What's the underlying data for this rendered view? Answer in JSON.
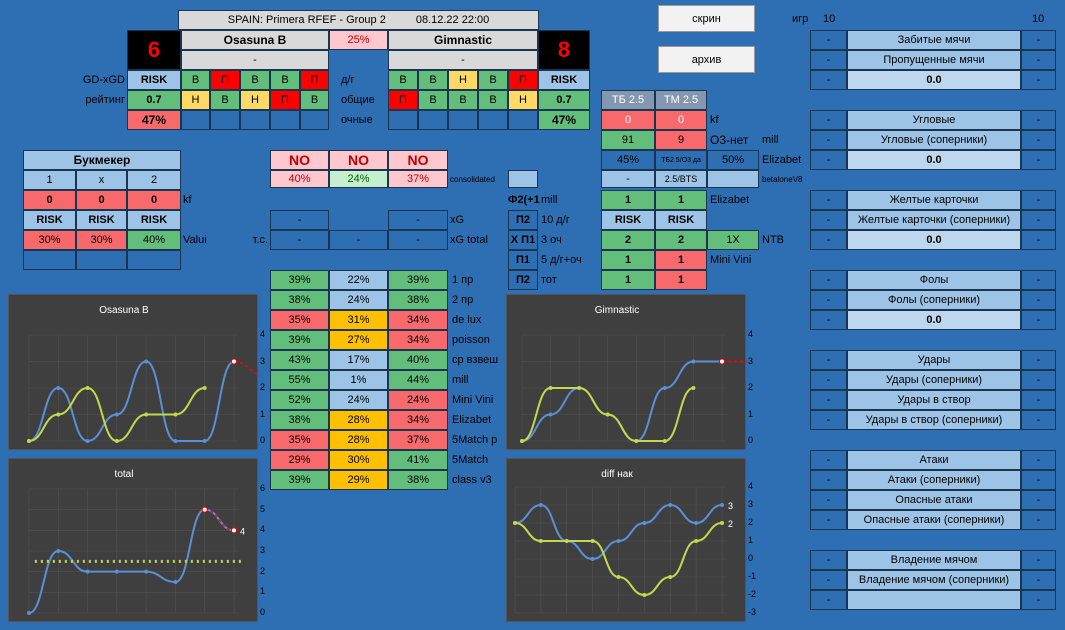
{
  "header": {
    "title": "SPAIN: Primera RFEF - Group 2",
    "date": "08.12.22 22:00",
    "home": "Osasuna B",
    "away": "Gimnastic",
    "dash": "-",
    "home_score": "6",
    "away_score": "8",
    "pct": "25%"
  },
  "labels": {
    "gdxgd": "GD-xGD",
    "rating": "рейтинг",
    "dg": "д/г",
    "overall": "общие",
    "direct": "очные",
    "bookmaker": "Букмекер",
    "one": "1",
    "x": "x",
    "two": "2",
    "kf": "kf",
    "valui": "Valui",
    "ts": "т.с.",
    "xg": "xG",
    "xg_total": "xG total",
    "consolidated": "consolidated",
    "f2": "Ф2(+1",
    "mill": "mill",
    "p2": "П2",
    "p2_10": "10 д/г",
    "xp1": "Х П1",
    "p3och": "3 оч",
    "p1": "П1",
    "p1_5": "5 д/г+оч",
    "p2b": "П2",
    "tot": "тот",
    "tb": "ТБ 2.5",
    "tm": "ТМ 2.5",
    "o3": "О3-нет",
    "mill2": "mill",
    "elizabet": "Elizabet",
    "betalone": "betaloneV8",
    "elizabet2": "Elizabet",
    "ntb": "NTB",
    "minivini": "Mini Vini",
    "games": "игр",
    "games_l": "10",
    "games_r": "10"
  },
  "home_form": {
    "risk": "RISK",
    "dg": [
      "В",
      "П",
      "В",
      "В",
      "П"
    ],
    "rating": "0.7",
    "ov": [
      "Н",
      "В",
      "Н",
      "П",
      "В"
    ],
    "direct": "47%"
  },
  "away_form": {
    "risk": "RISK",
    "dg": [
      "В",
      "В",
      "Н",
      "В",
      "П"
    ],
    "rating": "0.7",
    "ov": [
      "П",
      "В",
      "В",
      "В",
      "Н"
    ],
    "direct": "47%"
  },
  "bk": {
    "kf": [
      "0",
      "0",
      "0"
    ],
    "risk": [
      "RISK",
      "RISK",
      "RISK"
    ],
    "val": [
      "30%",
      "30%",
      "40%"
    ]
  },
  "no": {
    "lbl": [
      "NO",
      "NO",
      "NO"
    ],
    "pct": [
      "40%",
      "24%",
      "37%"
    ]
  },
  "xg": {
    "h": "-",
    "a": "-",
    "th": "-",
    "tm": "-",
    "ta": "-"
  },
  "mid": {
    "f2": [
      "1",
      "1"
    ],
    "p2": [
      "RISK",
      "RISK"
    ],
    "xp1": [
      "2",
      "2",
      "1X"
    ],
    "p1": [
      "1",
      "1"
    ],
    "p2b": [
      "1",
      "1"
    ],
    "tbtm": [
      "0",
      "0"
    ],
    "mill": [
      "91",
      "9"
    ],
    "eliz": [
      "45%",
      "ТБ2.5/О3 да",
      "50%"
    ],
    "bts": [
      "-",
      "2.5/BTS",
      ""
    ]
  },
  "preds": [
    [
      "39%",
      "22%",
      "39%",
      "1 пр"
    ],
    [
      "38%",
      "24%",
      "38%",
      "2 пр"
    ],
    [
      "35%",
      "31%",
      "34%",
      "de lux"
    ],
    [
      "39%",
      "27%",
      "34%",
      "poisson"
    ],
    [
      "43%",
      "17%",
      "40%",
      "ср взвеш"
    ],
    [
      "55%",
      "1%",
      "44%",
      "mill"
    ],
    [
      "52%",
      "24%",
      "24%",
      "Mini Vini"
    ],
    [
      "38%",
      "28%",
      "34%",
      "Elizabet"
    ],
    [
      "35%",
      "28%",
      "37%",
      "5Match р"
    ],
    [
      "29%",
      "30%",
      "41%",
      "5Match"
    ],
    [
      "39%",
      "29%",
      "38%",
      "class v3"
    ]
  ],
  "stats": [
    {
      "rows": [
        "Забитые мячи",
        "Пропущенные мячи"
      ],
      "val": "0.0"
    },
    {
      "rows": [
        "Угловые",
        "Угловые (соперники)"
      ],
      "val": "0.0"
    },
    {
      "rows": [
        "Желтые карточки",
        "Желтые карточки (соперники)"
      ],
      "val": "0.0"
    },
    {
      "rows": [
        "Фолы",
        "Фолы (соперники)"
      ],
      "val": "0.0"
    },
    {
      "rows": [
        "Удары",
        "Удары (соперники)",
        "Удары в створ",
        "Удары в створ (соперники)"
      ],
      "val": null
    },
    {
      "rows": [
        "Атаки",
        "Атаки (соперники)",
        "Опасные атаки",
        "Опасные атаки (соперники)"
      ],
      "val": null
    },
    {
      "rows": [
        "Владение мячом",
        "Владение мячом (соперники)",
        ""
      ],
      "val": null
    }
  ],
  "buttons": {
    "screen": "скрин",
    "archive": "архив"
  },
  "colors": {
    "bg": "#2e6fb4",
    "green": "#63be7b",
    "red": "#f8696b",
    "yellow": "#ffd966",
    "blue_line": "#5b8fd6",
    "lime_line": "#c2d94c"
  },
  "chart_data": [
    {
      "type": "line",
      "title": "Osasuna B",
      "ylim": [
        0,
        4
      ],
      "yticks": [
        "0",
        "1",
        "2",
        "3",
        "4"
      ],
      "series": [
        {
          "values": [
            0,
            2,
            0,
            1,
            3,
            0,
            0,
            3
          ]
        },
        {
          "values": [
            0,
            1,
            2,
            0,
            1,
            1,
            2
          ]
        },
        {
          "values": [
            3,
            2.5
          ]
        }
      ]
    },
    {
      "type": "line",
      "title": "Gimnastic",
      "ylim": [
        0,
        4
      ],
      "yticks": [
        "0",
        "1",
        "2",
        "3",
        "4"
      ],
      "series": [
        {
          "values": [
            0,
            1,
            2,
            1,
            0,
            2,
            3,
            3
          ]
        },
        {
          "values": [
            0,
            2,
            2,
            1,
            0,
            0,
            2
          ]
        },
        {
          "values": [
            3,
            3
          ]
        }
      ]
    },
    {
      "type": "line",
      "title": "total",
      "ylim": [
        0,
        6
      ],
      "yticks": [
        "0",
        "1",
        "2",
        "3",
        "4",
        "5",
        "6"
      ],
      "series": [
        {
          "values": [
            0,
            3,
            2,
            2,
            2,
            1.5,
            5,
            4
          ]
        },
        {
          "values": [
            2.5,
            2.5
          ]
        },
        {
          "values": [
            5,
            4
          ]
        }
      ]
    },
    {
      "type": "line",
      "title": "diff нак",
      "ylim": [
        -3,
        4
      ],
      "yticks": [
        "-3",
        "-2",
        "-1",
        "0",
        "1",
        "2",
        "3",
        "4"
      ],
      "series": [
        {
          "values": [
            2,
            3,
            1,
            0,
            1,
            2,
            3,
            2,
            3
          ]
        },
        {
          "values": [
            2,
            1,
            1,
            1,
            -1,
            -2,
            -1,
            1,
            2
          ]
        }
      ]
    }
  ]
}
